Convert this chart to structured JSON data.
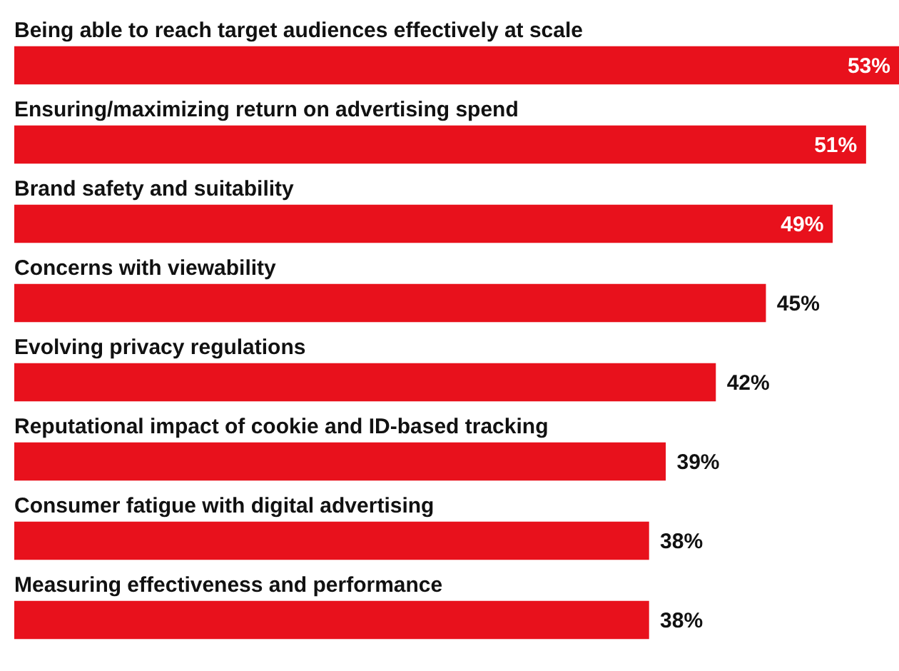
{
  "chart_data": {
    "type": "bar",
    "orientation": "horizontal",
    "color": "#e8111c",
    "categories": [
      "Being able to reach target audiences effectively at scale",
      "Ensuring/maximizing return on advertising spend",
      "Brand safety and suitability",
      "Concerns with viewability",
      "Evolving privacy regulations",
      "Reputational impact of cookie and ID-based tracking",
      "Consumer fatigue with digital advertising",
      "Measuring effectiveness and performance"
    ],
    "values": [
      53,
      51,
      49,
      45,
      42,
      39,
      38,
      38
    ],
    "value_labels": [
      "53%",
      "51%",
      "49%",
      "45%",
      "42%",
      "39%",
      "38%",
      "38%"
    ],
    "legend": false
  }
}
